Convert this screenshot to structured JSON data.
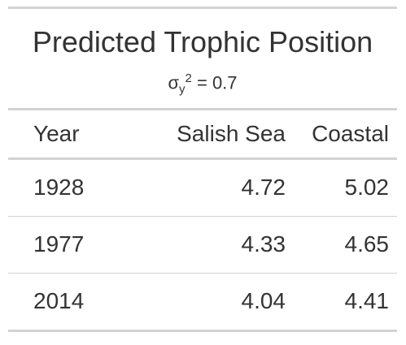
{
  "table": {
    "title": "Predicted Trophic Position",
    "subtitle": {
      "sigma": "σ",
      "sub": "y",
      "sup": "2",
      "rest": " = 0.7"
    },
    "columns": [
      "Year",
      "Salish Sea",
      "Coastal"
    ],
    "rows": [
      [
        "1928",
        "4.72",
        "5.02"
      ],
      [
        "1977",
        "4.33",
        "4.65"
      ],
      [
        "2014",
        "4.04",
        "4.41"
      ]
    ]
  },
  "colors": {
    "text": "#333333",
    "rule": "#d3d3d3",
    "background": "#ffffff"
  }
}
